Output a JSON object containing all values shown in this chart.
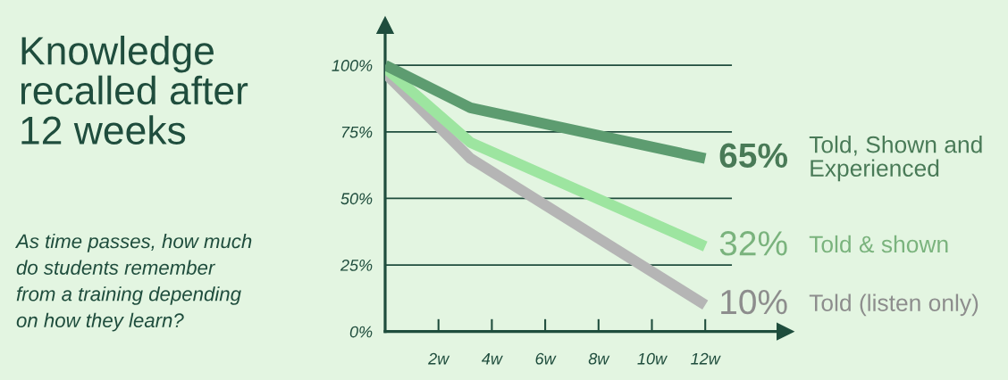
{
  "chart_data": {
    "type": "line",
    "title": "Knowledge recalled after 12 weeks",
    "subtitle": "As time passes, how much do students remember from a training depending on how they learn?",
    "x": [
      0,
      3.2,
      12
    ],
    "xlim": [
      0,
      15
    ],
    "ylim": [
      0,
      115
    ],
    "xticks": [
      {
        "value": 2,
        "label": "2w"
      },
      {
        "value": 4,
        "label": "4w"
      },
      {
        "value": 6,
        "label": "6w"
      },
      {
        "value": 8,
        "label": "8w"
      },
      {
        "value": 10,
        "label": "10w"
      },
      {
        "value": 12,
        "label": "12w"
      }
    ],
    "yticks": [
      {
        "value": 0,
        "label": "0%"
      },
      {
        "value": 25,
        "label": "25%"
      },
      {
        "value": 50,
        "label": "50%"
      },
      {
        "value": 75,
        "label": "75%"
      },
      {
        "value": 100,
        "label": "100%"
      }
    ],
    "grid": "y",
    "line_style": "solid",
    "series": [
      {
        "name": "Told, Shown and Experienced",
        "color": "#5d9c70",
        "values": [
          100,
          84,
          65
        ],
        "value_labels": [
          null,
          null,
          "65%"
        ]
      },
      {
        "name": "Told & shown",
        "color": "#9de5a0",
        "values": [
          99,
          71,
          32
        ],
        "value_labels": [
          null,
          null,
          "32%"
        ]
      },
      {
        "name": "Told (listen only)",
        "color": "#b5b5b5",
        "values": [
          97,
          65,
          10
        ],
        "value_labels": [
          null,
          null,
          "10%"
        ]
      }
    ]
  }
}
